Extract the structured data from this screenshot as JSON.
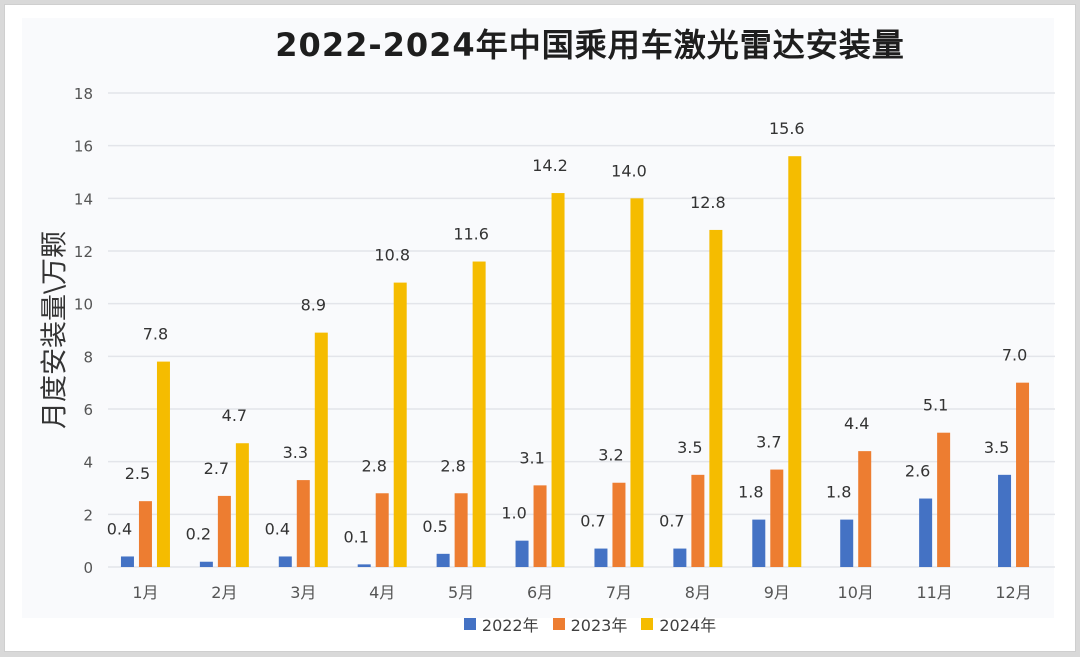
{
  "chart_data": {
    "type": "bar",
    "title": "2022-2024年中国乘用车激光雷达安装量",
    "xlabel": "",
    "ylabel": "月度安装量\\万颗",
    "ylim": [
      0,
      18
    ],
    "yticks": [
      "0",
      "2",
      "4",
      "6",
      "8",
      "10",
      "12",
      "14",
      "16",
      "18"
    ],
    "grid": true,
    "legend_position": "bottom",
    "categories": [
      "1月",
      "2月",
      "3月",
      "4月",
      "5月",
      "6月",
      "7月",
      "8月",
      "9月",
      "10月",
      "11月",
      "12月"
    ],
    "series": [
      {
        "name": "2022年",
        "color": "#4472c4",
        "values": [
          0.4,
          0.2,
          0.4,
          0.1,
          0.5,
          1.0,
          0.7,
          0.7,
          1.8,
          1.8,
          2.6,
          3.5
        ],
        "labels": [
          "0.4",
          "0.2",
          "0.4",
          "0.1",
          "0.5",
          "1.0",
          "0.7",
          "0.7",
          "1.8",
          "1.8",
          "2.6",
          "3.5"
        ]
      },
      {
        "name": "2023年",
        "color": "#ed7d31",
        "values": [
          2.5,
          2.7,
          3.3,
          2.8,
          2.8,
          3.1,
          3.2,
          3.5,
          3.7,
          4.4,
          5.1,
          7.0
        ],
        "labels": [
          "2.5",
          "2.7",
          "3.3",
          "2.8",
          "2.8",
          "3.1",
          "3.2",
          "3.5",
          "3.7",
          "4.4",
          "5.1",
          "7.0"
        ]
      },
      {
        "name": "2024年",
        "color": "#f5bc00",
        "values": [
          7.8,
          4.7,
          8.9,
          10.8,
          11.6,
          14.2,
          14.0,
          12.8,
          15.6,
          null,
          null,
          null
        ],
        "labels": [
          "7.8",
          "4.7",
          "8.9",
          "10.8",
          "11.6",
          "14.2",
          "14.0",
          "12.8",
          "15.6",
          null,
          null,
          null
        ]
      }
    ]
  }
}
